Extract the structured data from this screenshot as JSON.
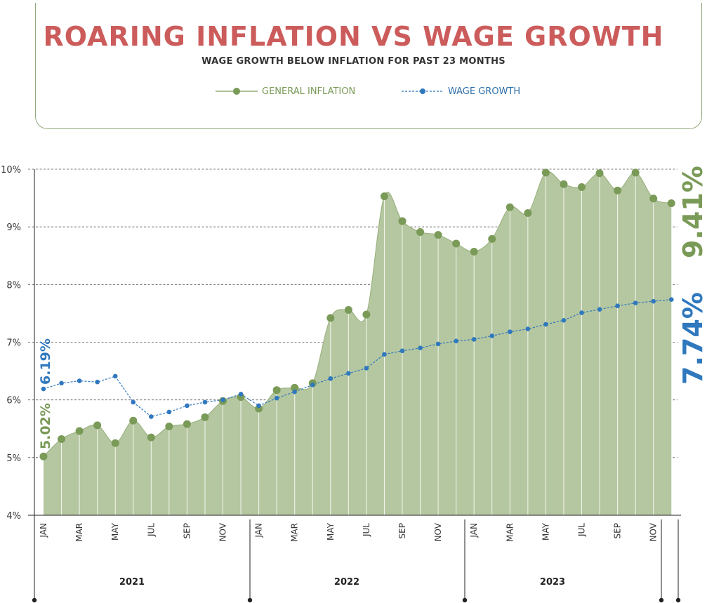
{
  "chart_data": {
    "type": "area",
    "title": "ROARING INFLATION VS WAGE GROWTH",
    "subtitle": "WAGE GROWTH BELOW INFLATION FOR PAST 23 MONTHS",
    "ylim": [
      4,
      10
    ],
    "yticks": [
      "4%",
      "5%",
      "6%",
      "7%",
      "8%",
      "9%",
      "10%"
    ],
    "grid": true,
    "legend_placement": "top-center",
    "x_month_labels": [
      "JAN",
      "",
      "MAR",
      "",
      "MAY",
      "",
      "JUL",
      "",
      "SEP",
      "",
      "NOV",
      "",
      "JAN",
      "",
      "MAR",
      "",
      "MAY",
      "",
      "JUL",
      "",
      "SEP",
      "",
      "NOV",
      "",
      "JAN",
      "",
      "MAR",
      "",
      "MAY",
      "",
      "JUL",
      "",
      "SEP",
      "",
      "NOV",
      ""
    ],
    "years": [
      "2021",
      "2022",
      "2023"
    ],
    "series": [
      {
        "name": "GENERAL INFLATION",
        "color": "#7a9a58",
        "fill": "#b5c7a0",
        "values": [
          5.02,
          5.32,
          5.46,
          5.56,
          5.25,
          5.64,
          5.35,
          5.54,
          5.58,
          5.7,
          5.98,
          6.05,
          5.85,
          6.17,
          6.21,
          6.29,
          7.42,
          7.56,
          7.48,
          9.53,
          9.1,
          8.91,
          8.86,
          8.71,
          8.57,
          8.79,
          9.34,
          9.24,
          9.94,
          9.74,
          9.69,
          9.93,
          9.63,
          9.94,
          9.49,
          9.41
        ]
      },
      {
        "name": "WAGE GROWTH",
        "color": "#2f78be",
        "values": [
          6.19,
          6.29,
          6.33,
          6.31,
          6.41,
          5.96,
          5.71,
          5.79,
          5.9,
          5.96,
          6.0,
          6.1,
          5.9,
          6.03,
          6.14,
          6.26,
          6.37,
          6.46,
          6.55,
          6.79,
          6.85,
          6.9,
          6.97,
          7.02,
          7.05,
          7.11,
          7.18,
          7.23,
          7.31,
          7.38,
          7.51,
          7.57,
          7.63,
          7.68,
          7.71,
          7.74
        ]
      }
    ],
    "annotations": {
      "inflation_start": "5.02%",
      "wage_start": "6.19%",
      "inflation_end": "9.41%",
      "wage_end": "7.74%"
    }
  }
}
